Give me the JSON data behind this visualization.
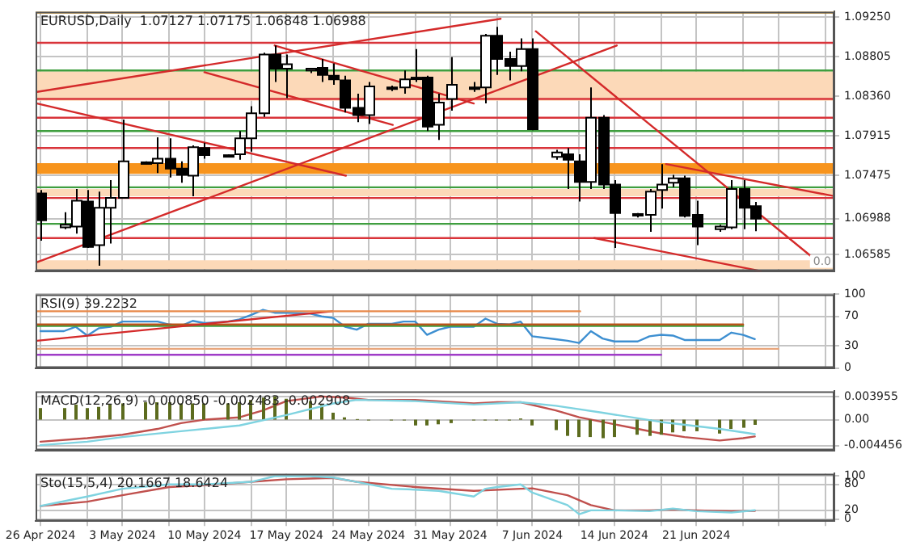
{
  "chart_data": [
    {
      "type": "candlestick",
      "title": "EURUSD,Daily  1.07127 1.07175 1.06848 1.06988",
      "grid": true,
      "tick_labels": "y",
      "x": [
        "2024-04-26",
        "2024-04-28",
        "2024-04-29",
        "2024-04-30",
        "2024-05-01",
        "2024-05-02",
        "2024-05-03",
        "2024-05-05",
        "2024-05-06",
        "2024-05-07",
        "2024-05-08",
        "2024-05-09",
        "2024-05-10",
        "2024-05-12",
        "2024-05-13",
        "2024-05-14",
        "2024-05-15",
        "2024-05-16",
        "2024-05-17",
        "2024-05-19",
        "2024-05-20",
        "2024-05-21",
        "2024-05-22",
        "2024-05-23",
        "2024-05-24",
        "2024-05-26",
        "2024-05-27",
        "2024-05-28",
        "2024-05-29",
        "2024-05-30",
        "2024-05-31",
        "2024-06-02",
        "2024-06-03",
        "2024-06-04",
        "2024-06-05",
        "2024-06-06",
        "2024-06-07",
        "2024-06-09",
        "2024-06-10",
        "2024-06-11",
        "2024-06-12",
        "2024-06-13",
        "2024-06-14",
        "2024-06-16",
        "2024-06-17",
        "2024-06-18",
        "2024-06-19",
        "2024-06-20",
        "2024-06-21",
        "2024-06-23",
        "2024-06-24",
        "2024-06-25",
        "2024-06-26"
      ],
      "ohlc": [
        [
          1.0727,
          1.0731,
          1.0674,
          1.0697
        ],
        [
          1.0689,
          1.0706,
          1.0687,
          1.0692
        ],
        [
          1.069,
          1.0732,
          1.0682,
          1.0719
        ],
        [
          1.0718,
          1.0731,
          1.0666,
          1.0667
        ],
        [
          1.0669,
          1.0729,
          1.0646,
          1.0711
        ],
        [
          1.0711,
          1.0742,
          1.0671,
          1.0722
        ],
        [
          1.0722,
          1.081,
          1.0722,
          1.0763
        ],
        [
          1.0761,
          1.0763,
          1.076,
          1.0762
        ],
        [
          1.0761,
          1.079,
          1.075,
          1.0766
        ],
        [
          1.0766,
          1.0789,
          1.0745,
          1.0755
        ],
        [
          1.0755,
          1.0763,
          1.0739,
          1.0748
        ],
        [
          1.0747,
          1.0781,
          1.0724,
          1.0779
        ],
        [
          1.0778,
          1.0784,
          1.0766,
          1.077
        ],
        [
          1.0769,
          1.0771,
          1.0768,
          1.077
        ],
        [
          1.0771,
          1.0797,
          1.0765,
          1.0789
        ],
        [
          1.0789,
          1.0825,
          1.0774,
          1.0817
        ],
        [
          1.0817,
          1.0885,
          1.0813,
          1.0883
        ],
        [
          1.0883,
          1.0893,
          1.0852,
          1.0867
        ],
        [
          1.0867,
          1.0883,
          1.0834,
          1.0872
        ],
        [
          1.0865,
          1.0868,
          1.0862,
          1.0867
        ],
        [
          1.0868,
          1.0878,
          1.0852,
          1.086
        ],
        [
          1.0859,
          1.0873,
          1.0849,
          1.0855
        ],
        [
          1.0854,
          1.0859,
          1.0818,
          1.0823
        ],
        [
          1.0823,
          1.0839,
          1.0807,
          1.0815
        ],
        [
          1.0815,
          1.0852,
          1.0805,
          1.0847
        ],
        [
          1.0845,
          1.0848,
          1.0842,
          1.0846
        ],
        [
          1.0846,
          1.0865,
          1.0839,
          1.0855
        ],
        [
          1.0856,
          1.0889,
          1.0852,
          1.0857
        ],
        [
          1.0857,
          1.0859,
          1.0797,
          1.0802
        ],
        [
          1.0804,
          1.0839,
          1.0787,
          1.0829
        ],
        [
          1.0833,
          1.088,
          1.082,
          1.0849
        ],
        [
          1.0845,
          1.0852,
          1.0841,
          1.0846
        ],
        [
          1.0846,
          1.0906,
          1.0828,
          1.0904
        ],
        [
          1.0904,
          1.0914,
          1.086,
          1.0878
        ],
        [
          1.0878,
          1.0886,
          1.0854,
          1.087
        ],
        [
          1.087,
          1.0901,
          1.0864,
          1.0889
        ],
        [
          1.0889,
          1.0901,
          1.0798,
          1.0799
        ],
        [
          1.0768,
          1.0776,
          1.0765,
          1.0773
        ],
        [
          1.0771,
          1.0778,
          1.0732,
          1.0765
        ],
        [
          1.0763,
          1.0771,
          1.0718,
          1.074
        ],
        [
          1.074,
          1.0846,
          1.0732,
          1.0812
        ],
        [
          1.0812,
          1.0815,
          1.0732,
          1.0737
        ],
        [
          1.0737,
          1.0742,
          1.0666,
          1.0705
        ],
        [
          1.0703,
          1.0705,
          1.07,
          1.0704
        ],
        [
          1.0703,
          1.0732,
          1.0684,
          1.0729
        ],
        [
          1.0731,
          1.076,
          1.071,
          1.0737
        ],
        [
          1.0739,
          1.0748,
          1.0734,
          1.0744
        ],
        [
          1.0744,
          1.0747,
          1.07,
          1.0702
        ],
        [
          1.0703,
          1.0719,
          1.0669,
          1.069
        ],
        [
          1.0687,
          1.0692,
          1.0684,
          1.069
        ],
        [
          1.0689,
          1.0742,
          1.0687,
          1.0732
        ],
        [
          1.0732,
          1.0742,
          1.0687,
          1.0711
        ],
        [
          1.07127,
          1.07175,
          1.06848,
          1.06988
        ]
      ],
      "colors": [
        "#000000",
        "#ffffff",
        "#ffffff",
        "#000000",
        "#ffffff",
        "#ffffff",
        "#ffffff",
        "#ffffff",
        "#ffffff",
        "#000000",
        "#000000",
        "#ffffff",
        "#000000",
        "#ffffff",
        "#ffffff",
        "#ffffff",
        "#ffffff",
        "#000000",
        "#ffffff",
        "#ffffff",
        "#000000",
        "#000000",
        "#000000",
        "#000000",
        "#ffffff",
        "#ffffff",
        "#ffffff",
        "#ffffff",
        "#000000",
        "#ffffff",
        "#ffffff",
        "#ffffff",
        "#ffffff",
        "#000000",
        "#000000",
        "#ffffff",
        "#000000",
        "#ffffff",
        "#000000",
        "#000000",
        "#ffffff",
        "#000000",
        "#000000",
        "#ffffff",
        "#ffffff",
        "#ffffff",
        "#ffffff",
        "#000000",
        "#000000",
        "#ffffff",
        "#ffffff",
        "#000000",
        "#000000"
      ],
      "series": [
        {
          "type": "line",
          "x": [
            "2024-04-25T17:00",
            "2024-06-04T07:00"
          ],
          "values": [
            1.0841,
            1.0923
          ],
          "color": "#d42a2a"
        },
        {
          "type": "line",
          "x": [
            "2024-04-25T17:00",
            "2024-05-22T02:00"
          ],
          "values": [
            1.0828,
            1.0747
          ],
          "color": "#d42a2a"
        },
        {
          "type": "line",
          "x": [
            "2024-04-25T17:00",
            "2024-06-14T05:00"
          ],
          "values": [
            1.065,
            1.0893
          ],
          "color": "#d42a2a"
        },
        {
          "type": "line",
          "x": [
            "2024-05-10",
            "2024-05-26T02:00"
          ],
          "values": [
            1.0863,
            1.0804
          ],
          "color": "#d42a2a"
        },
        {
          "type": "line",
          "x": [
            "2024-05-16",
            "2024-06-02"
          ],
          "values": [
            1.0893,
            1.0828
          ],
          "color": "#d42a2a"
        },
        {
          "type": "line",
          "x": [
            "2024-06-07T07:00",
            "2024-07-01T19:00"
          ],
          "values": [
            1.0909,
            1.0646
          ],
          "color": "#d42a2a"
        },
        {
          "type": "line",
          "x": [
            "2024-06-18T10:00",
            "2024-07-02T19:00"
          ],
          "values": [
            1.076,
            1.0724
          ],
          "color": "#d42a2a"
        },
        {
          "type": "line",
          "x": [
            "2024-06-12T07:00",
            "2024-06-26T12:00"
          ],
          "values": [
            1.0677,
            1.064
          ],
          "color": "#d42a2a"
        }
      ],
      "bands": [
        {
          "axis": "y",
          "from": 1.0831,
          "to": 1.0864,
          "color": "#fcd9b8"
        },
        {
          "axis": "y",
          "from": 1.0749,
          "to": 1.0761,
          "color": "#f7941d"
        },
        {
          "axis": "y",
          "from": 1.0724,
          "to": 1.0732,
          "color": "#fcd9b8"
        },
        {
          "axis": "y",
          "from": 1.0642,
          "to": 1.0652,
          "color": "#fcd9b8"
        }
      ],
      "ref_lines": [
        {
          "axis": "y",
          "value": 1.093,
          "color": "#f2a516"
        },
        {
          "axis": "y",
          "value": 1.0896,
          "color": "#d9343a"
        },
        {
          "axis": "y",
          "value": 1.0865,
          "color": "#3f9e3f"
        },
        {
          "axis": "y",
          "value": 1.0833,
          "color": "#d9343a"
        },
        {
          "axis": "y",
          "value": 1.0812,
          "color": "#d9343a"
        },
        {
          "axis": "y",
          "value": 1.0797,
          "color": "#3f9e3f"
        },
        {
          "axis": "y",
          "value": 1.0778,
          "color": "#d9343a"
        },
        {
          "axis": "y",
          "value": 1.0734,
          "color": "#3f9e3f"
        },
        {
          "axis": "y",
          "value": 1.0722,
          "color": "#d9343a"
        },
        {
          "axis": "y",
          "value": 1.0693,
          "color": "#3f9e3f"
        },
        {
          "axis": "y",
          "value": 1.0677,
          "color": "#d9343a"
        }
      ],
      "annotations": [
        "0.0"
      ],
      "xlim": [
        "2024-04-25T14:00",
        "2024-07-02T19:00"
      ],
      "xticks": [
        "2024-04-26",
        "2024-04-30",
        "2024-05-03",
        "2024-05-07",
        "2024-05-10",
        "2024-05-14",
        "2024-05-17",
        "2024-05-21",
        "2024-05-24",
        "2024-05-28",
        "2024-05-31",
        "2024-06-04",
        "2024-06-07",
        "2024-06-11",
        "2024-06-14",
        "2024-06-18",
        "2024-06-21",
        "2024-06-25",
        "2024-06-28",
        "2024-07-02"
      ],
      "ylim": [
        1.064,
        1.0931
      ],
      "yticks": [
        {
          "value": 1.0925,
          "label": "1.09250"
        },
        1.08805,
        {
          "value": 1.0836,
          "label": "1.08360"
        },
        1.07915,
        1.07475,
        1.06988,
        1.06585
      ]
    },
    {
      "type": "line",
      "title": "RSI(9) 39.2232",
      "grid": true,
      "tick_labels": "y",
      "x": [
        "2024-04-26",
        "2024-04-28",
        "2024-04-29",
        "2024-04-30",
        "2024-05-01",
        "2024-05-02",
        "2024-05-03",
        "2024-05-05",
        "2024-05-06",
        "2024-05-07",
        "2024-05-08",
        "2024-05-09",
        "2024-05-10",
        "2024-05-12",
        "2024-05-13",
        "2024-05-14",
        "2024-05-15",
        "2024-05-16",
        "2024-05-17",
        "2024-05-19",
        "2024-05-20",
        "2024-05-21",
        "2024-05-22",
        "2024-05-23",
        "2024-05-24",
        "2024-05-26",
        "2024-05-27",
        "2024-05-28",
        "2024-05-29",
        "2024-05-30",
        "2024-05-31",
        "2024-06-02",
        "2024-06-03",
        "2024-06-04",
        "2024-06-05",
        "2024-06-06",
        "2024-06-07",
        "2024-06-09",
        "2024-06-10",
        "2024-06-11",
        "2024-06-12",
        "2024-06-13",
        "2024-06-14",
        "2024-06-16",
        "2024-06-17",
        "2024-06-18",
        "2024-06-19",
        "2024-06-20",
        "2024-06-21",
        "2024-06-23",
        "2024-06-24",
        "2024-06-25",
        "2024-06-26"
      ],
      "series": [
        {
          "type": "line",
          "x": [
            "2024-04-25T17:00",
            "2024-06-11T02:00"
          ],
          "values": [
            77,
            77
          ],
          "color": "#e8894a"
        },
        {
          "type": "line",
          "x": [
            "2024-04-25T17:00",
            "2024-05-20T22:00"
          ],
          "values": [
            37,
            77
          ],
          "color": "#d42a2a"
        },
        {
          "type": "line",
          "x": [
            "2024-04-25T17:00",
            "2024-06-25"
          ],
          "values": [
            59,
            59
          ],
          "color": "#b8541a"
        },
        {
          "type": "line",
          "x": [
            "2024-04-25T17:00",
            "2024-06-25"
          ],
          "values": [
            57,
            57
          ],
          "color": "#3f9e3f"
        },
        {
          "type": "line",
          "x": [
            "2024-04-25T17:00",
            "2024-06-28"
          ],
          "values": [
            26,
            26
          ],
          "color": "#e8a47a"
        },
        {
          "type": "line",
          "x": [
            "2024-04-25T17:00",
            "2024-06-18"
          ],
          "values": [
            18,
            18
          ],
          "color": "#a03cc8"
        },
        {
          "type": "line",
          "values": [
            50,
            50,
            56,
            44,
            54,
            56,
            63,
            63,
            63,
            59,
            57,
            64,
            61,
            63,
            66,
            72,
            79,
            75,
            75,
            74,
            70,
            68,
            56,
            52,
            60,
            60,
            63,
            63,
            45,
            52,
            56,
            56,
            67,
            60,
            59,
            63,
            43,
            39,
            37,
            34,
            50,
            40,
            36,
            36,
            43,
            45,
            44,
            38,
            38,
            38,
            48,
            45,
            39.2232
          ],
          "color": "#3d8fd1"
        }
      ],
      "xlim": [
        "2024-04-25T14:00",
        "2024-07-02T19:00"
      ],
      "xticks": [
        "2024-04-26",
        "2024-04-30",
        "2024-05-03",
        "2024-05-07",
        "2024-05-10",
        "2024-05-14",
        "2024-05-17",
        "2024-05-21",
        "2024-05-24",
        "2024-05-28",
        "2024-05-31",
        "2024-06-04",
        "2024-06-07",
        "2024-06-11",
        "2024-06-14",
        "2024-06-18",
        "2024-06-21",
        "2024-06-25",
        "2024-06-28",
        "2024-07-02"
      ],
      "ylim": [
        0,
        100
      ],
      "yticks": [
        100,
        70,
        30,
        0
      ]
    },
    {
      "type": "bar",
      "title": "MACD(12,26,9) -0.000850 -0.002483 -0.002908",
      "grid": "y",
      "tick_labels": "y",
      "x": [
        "2024-04-26",
        "2024-04-28",
        "2024-04-29",
        "2024-04-30",
        "2024-05-01",
        "2024-05-02",
        "2024-05-03",
        "2024-05-05",
        "2024-05-06",
        "2024-05-07",
        "2024-05-08",
        "2024-05-09",
        "2024-05-10",
        "2024-05-12",
        "2024-05-13",
        "2024-05-14",
        "2024-05-15",
        "2024-05-16",
        "2024-05-17",
        "2024-05-19",
        "2024-05-20",
        "2024-05-21",
        "2024-05-22",
        "2024-05-23",
        "2024-05-24",
        "2024-05-26",
        "2024-05-27",
        "2024-05-28",
        "2024-05-29",
        "2024-05-30",
        "2024-05-31",
        "2024-06-02",
        "2024-06-03",
        "2024-06-04",
        "2024-06-05",
        "2024-06-06",
        "2024-06-07",
        "2024-06-09",
        "2024-06-10",
        "2024-06-11",
        "2024-06-12",
        "2024-06-13",
        "2024-06-14",
        "2024-06-16",
        "2024-06-17",
        "2024-06-18",
        "2024-06-19",
        "2024-06-20",
        "2024-06-21",
        "2024-06-23",
        "2024-06-24",
        "2024-06-25",
        "2024-06-26"
      ],
      "series": [
        {
          "type": "bar",
          "values": [
            0.002,
            0.002,
            0.0026,
            0.002,
            0.0022,
            0.0026,
            0.0028,
            0.003,
            0.003,
            0.003,
            0.0028,
            0.0028,
            0.0028,
            0.0028,
            0.003,
            0.0034,
            0.0038,
            0.004,
            0.0036,
            0.0032,
            0.0026,
            0.0012,
            0.0004,
            0.0001,
            0,
            0,
            0,
            -0.001,
            -0.001,
            -0.0008,
            -0.0006,
            0,
            0,
            0,
            0,
            0.0002,
            -0.001,
            -0.0018,
            -0.0028,
            -0.003,
            -0.003,
            -0.0032,
            -0.003,
            -0.0026,
            -0.0028,
            -0.0026,
            -0.0022,
            -0.002,
            -0.002,
            -0.0024,
            -0.0016,
            -0.0014,
            -0.0009
          ],
          "color": "#5c6b1e"
        },
        {
          "type": "line",
          "x": [
            "2024-04-26",
            "2024-04-30",
            "2024-05-03",
            "2024-05-08",
            "2024-05-13",
            "2024-05-17",
            "2024-05-21",
            "2024-05-23",
            "2024-05-28",
            "2024-06-02",
            "2024-06-06",
            "2024-06-09",
            "2024-06-13",
            "2024-06-18",
            "2024-06-23",
            "2024-06-26"
          ],
          "values": [
            -0.0044,
            -0.0038,
            -0.003,
            -0.002,
            -0.001,
            0.0008,
            0.0028,
            0.0034,
            0.0032,
            0.0026,
            0.003,
            0.0024,
            0.0012,
            -0.0004,
            -0.0016,
            -0.0025
          ],
          "color": "#7fd3e0"
        },
        {
          "type": "line",
          "x": [
            "2024-04-26",
            "2024-04-30",
            "2024-05-03",
            "2024-05-06",
            "2024-05-08",
            "2024-05-10",
            "2024-05-13",
            "2024-05-15",
            "2024-05-17",
            "2024-05-20",
            "2024-05-22",
            "2024-05-24",
            "2024-05-28",
            "2024-06-02",
            "2024-06-04",
            "2024-06-06",
            "2024-06-09",
            "2024-06-11",
            "2024-06-13",
            "2024-06-16",
            "2024-06-18",
            "2024-06-20",
            "2024-06-23",
            "2024-06-25",
            "2024-06-26"
          ],
          "values": [
            -0.0038,
            -0.0032,
            -0.0026,
            -0.0016,
            -0.0006,
            0,
            0.0004,
            0.0016,
            0.0032,
            0.004,
            0.0038,
            0.0034,
            0.0034,
            0.0028,
            0.003,
            0.003,
            0.0016,
            0.0004,
            -0.0004,
            -0.0016,
            -0.0024,
            -0.003,
            -0.0036,
            -0.0032,
            -0.0029
          ],
          "color": "#c0504d"
        }
      ],
      "xlim": [
        "2024-04-25T14:00",
        "2024-07-02T19:00"
      ],
      "ylim": [
        -0.0053,
        0.0049
      ],
      "yticks": [
        0.003955,
        {
          "value": 0,
          "label": "0.00"
        },
        -0.004456
      ]
    },
    {
      "type": "line",
      "title": "Sto(15,5,4) 20.1667 18.6424",
      "grid": true,
      "series": [
        {
          "type": "line",
          "x": [
            "2024-04-26",
            "2024-04-30",
            "2024-05-03",
            "2024-05-07",
            "2024-05-10",
            "2024-05-14",
            "2024-05-16",
            "2024-05-19",
            "2024-05-21",
            "2024-05-23",
            "2024-05-26",
            "2024-05-28",
            "2024-05-30",
            "2024-06-02",
            "2024-06-03",
            "2024-06-04",
            "2024-06-06",
            "2024-06-07",
            "2024-06-10",
            "2024-06-11",
            "2024-06-12",
            "2024-06-14",
            "2024-06-17",
            "2024-06-19",
            "2024-06-21",
            "2024-06-24",
            "2024-06-26"
          ],
          "values": [
            30,
            52,
            70,
            80,
            80,
            86,
            99,
            99,
            96,
            86,
            70,
            68,
            65,
            52,
            70,
            74,
            80,
            61,
            32,
            11,
            20,
            20,
            18,
            24,
            18,
            15,
            20.1667
          ],
          "color": "#7fd3e0"
        },
        {
          "type": "line",
          "x": [
            "2024-04-26",
            "2024-04-30",
            "2024-05-03",
            "2024-05-07",
            "2024-05-10",
            "2024-05-14",
            "2024-05-17",
            "2024-05-21",
            "2024-05-23",
            "2024-05-28",
            "2024-06-02",
            "2024-06-06",
            "2024-06-07",
            "2024-06-10",
            "2024-06-12",
            "2024-06-14",
            "2024-06-17",
            "2024-06-19",
            "2024-06-21",
            "2024-06-24",
            "2024-06-26"
          ],
          "values": [
            30,
            40,
            55,
            74,
            78,
            86,
            92,
            95,
            86,
            74,
            65,
            70,
            71,
            55,
            32,
            20,
            20,
            22,
            20,
            18,
            18.6424
          ],
          "color": "#c0504d"
        }
      ],
      "xlim": [
        "2024-04-25T14:00",
        "2024-07-02T19:00"
      ],
      "xticks": [
        {
          "value": "2024-04-26",
          "label": "26 Apr 2024"
        },
        {
          "value": "2024-04-30",
          "label": null
        },
        {
          "value": "2024-05-03",
          "label": "3 May 2024"
        },
        {
          "value": "2024-05-07",
          "label": null
        },
        {
          "value": "2024-05-10",
          "label": "10 May 2024"
        },
        {
          "value": "2024-05-14",
          "label": null
        },
        {
          "value": "2024-05-17",
          "label": "17 May 2024"
        },
        {
          "value": "2024-05-21",
          "label": null
        },
        {
          "value": "2024-05-24",
          "label": "24 May 2024"
        },
        {
          "value": "2024-05-28",
          "label": null
        },
        {
          "value": "2024-05-31",
          "label": "31 May 2024"
        },
        {
          "value": "2024-06-04",
          "label": null
        },
        {
          "value": "2024-06-07",
          "label": "7 Jun 2024"
        },
        {
          "value": "2024-06-11",
          "label": null
        },
        {
          "value": "2024-06-14",
          "label": "14 Jun 2024"
        },
        {
          "value": "2024-06-18",
          "label": null
        },
        {
          "value": "2024-06-21",
          "label": "21 Jun 2024"
        },
        {
          "value": "2024-06-25",
          "label": null
        },
        {
          "value": "2024-06-28",
          "label": null
        },
        {
          "value": "2024-07-02",
          "label": null
        }
      ],
      "ylim": [
        -5,
        105
      ],
      "yticks": [
        100,
        80,
        20,
        0
      ]
    }
  ]
}
